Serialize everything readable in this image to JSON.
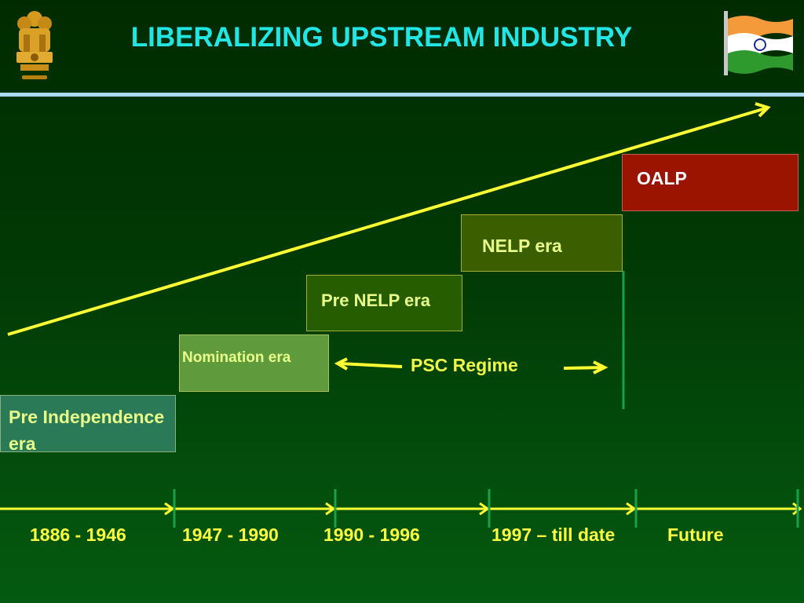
{
  "slide": {
    "title": "LIBERALIZING UPSTREAM INDUSTRY"
  },
  "eras": {
    "oalp": "OALP",
    "nelp": "NELP era",
    "pre_nelp": "Pre NELP era",
    "nomination": "Nomination era",
    "pre_independence": "Pre Independence era"
  },
  "regime": {
    "label": "PSC Regime"
  },
  "timeline": {
    "periods": [
      "1886 - 1946",
      "1947 - 1990",
      "1990 - 1996",
      "1997 – till date",
      "Future"
    ]
  },
  "colors": {
    "background": "#013a05",
    "title": "#22e6e6",
    "arrow": "#ffff33",
    "oalp_box": "#9a1400",
    "nelp_box": "#3b5e00",
    "pre_nelp_box": "#255d00",
    "nomination_box": "#5f9a3c",
    "pre_independence_box": "#2a7a57",
    "tick": "#1aa04a"
  },
  "icons": {
    "left": "national-emblem-icon",
    "right": "indian-flag-icon"
  }
}
